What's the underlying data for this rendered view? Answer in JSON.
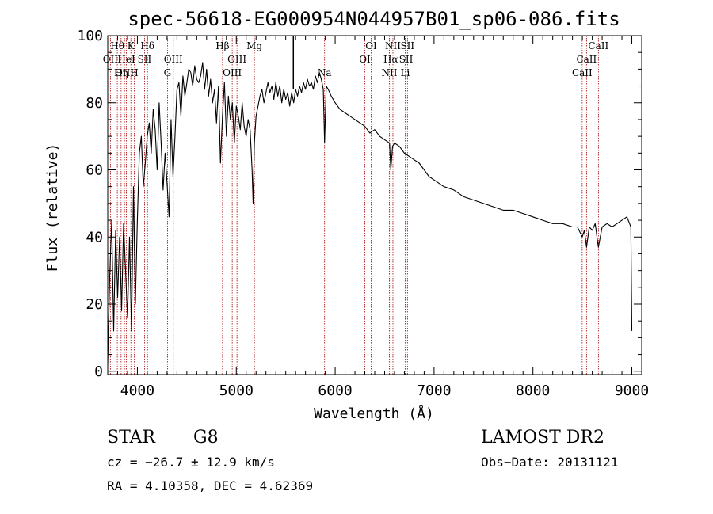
{
  "chart_data": {
    "type": "line",
    "title": "spec-56618-EG000954N044957B01_sp06-086.fits",
    "xlabel": "Wavelength (Å)",
    "ylabel": "Flux (relative)",
    "xlim": [
      3700,
      9100
    ],
    "ylim": [
      -1,
      100
    ],
    "x_ticks": [
      4000,
      5000,
      6000,
      7000,
      8000,
      9000
    ],
    "y_ticks": [
      0,
      20,
      40,
      60,
      80,
      100
    ],
    "grid": false,
    "series": [
      {
        "x": [
          3700,
          3720,
          3740,
          3760,
          3780,
          3800,
          3820,
          3840,
          3860,
          3880,
          3900,
          3920,
          3940,
          3960,
          3980,
          4000,
          4020,
          4040,
          4060,
          4080,
          4100,
          4120,
          4140,
          4160,
          4180,
          4200,
          4220,
          4240,
          4260,
          4280,
          4300,
          4320,
          4340,
          4360,
          4380,
          4400,
          4420,
          4440,
          4460,
          4480,
          4500,
          4520,
          4540,
          4560,
          4580,
          4600,
          4620,
          4640,
          4660,
          4680,
          4700,
          4720,
          4740,
          4760,
          4780,
          4800,
          4820,
          4840,
          4860,
          4880,
          4900,
          4920,
          4940,
          4960,
          4980,
          5000,
          5020,
          5040,
          5060,
          5080,
          5100,
          5120,
          5140,
          5160,
          5170,
          5183,
          5200,
          5220,
          5240,
          5260,
          5280,
          5300,
          5320,
          5340,
          5360,
          5380,
          5400,
          5420,
          5440,
          5460,
          5480,
          5500,
          5520,
          5540,
          5560,
          5580,
          5600,
          5620,
          5640,
          5660,
          5680,
          5700,
          5720,
          5740,
          5760,
          5780,
          5800,
          5820,
          5840,
          5860,
          5880,
          5893,
          5910,
          5930,
          5960,
          6000,
          6050,
          6100,
          6150,
          6200,
          6250,
          6300,
          6350,
          6400,
          6450,
          6500,
          6550,
          6563,
          6580,
          6600,
          6650,
          6700,
          6750,
          6800,
          6850,
          6900,
          6950,
          7000,
          7100,
          7200,
          7300,
          7400,
          7500,
          7600,
          7700,
          7800,
          7900,
          8000,
          8100,
          8200,
          8300,
          8400,
          8450,
          8498,
          8520,
          8542,
          8570,
          8600,
          8630,
          8662,
          8700,
          8750,
          8800,
          8850,
          8900,
          8950,
          8990,
          9000
        ],
        "values": [
          2,
          28,
          45,
          12,
          42,
          22,
          40,
          18,
          44,
          30,
          16,
          40,
          12,
          55,
          20,
          45,
          65,
          70,
          55,
          62,
          70,
          74,
          65,
          78,
          72,
          60,
          80,
          68,
          54,
          65,
          56,
          46,
          75,
          58,
          70,
          84,
          86,
          76,
          88,
          82,
          86,
          90,
          89,
          85,
          91,
          87,
          86,
          88,
          92,
          84,
          90,
          82,
          87,
          80,
          84,
          74,
          85,
          62,
          76,
          86,
          70,
          82,
          75,
          80,
          68,
          79,
          76,
          72,
          80,
          73,
          70,
          75,
          72,
          60,
          50,
          68,
          76,
          79,
          82,
          84,
          80,
          83,
          86,
          83,
          85,
          81,
          86,
          82,
          85,
          80,
          84,
          81,
          83,
          79,
          83,
          80,
          84,
          82,
          85,
          83,
          86,
          84,
          87,
          85,
          86,
          84,
          88,
          86,
          89,
          87,
          84,
          68,
          85,
          84,
          82,
          80,
          78,
          77,
          76,
          75,
          74,
          73,
          71,
          72,
          70,
          69,
          68,
          60,
          67,
          68,
          67,
          65,
          64,
          63,
          62,
          60,
          58,
          57,
          55,
          54,
          52,
          51,
          50,
          49,
          48,
          48,
          47,
          46,
          45,
          44,
          44,
          43,
          43,
          40,
          42,
          37,
          43,
          42,
          44,
          37,
          43,
          44,
          43,
          44,
          45,
          46,
          43,
          12
        ]
      }
    ],
    "annotations": [
      {
        "label": "Hθ",
        "x": 3797,
        "row": 0
      },
      {
        "label": "K",
        "x": 3934,
        "row": 0
      },
      {
        "label": "Hδ",
        "x": 4102,
        "row": 0
      },
      {
        "label": "Hβ",
        "x": 4861,
        "row": 0
      },
      {
        "label": "Mg",
        "x": 5183,
        "row": 0
      },
      {
        "label": "OI",
        "x": 6364,
        "row": 0
      },
      {
        "label": "NII",
        "x": 6584,
        "row": 0
      },
      {
        "label": "SII",
        "x": 6731,
        "row": 0
      },
      {
        "label": "CaII",
        "x": 8662,
        "row": 0
      },
      {
        "label": "OII",
        "x": 3727,
        "row": 1
      },
      {
        "label": "HeI",
        "x": 3889,
        "row": 1
      },
      {
        "label": "SII",
        "x": 4072,
        "row": 1
      },
      {
        "label": "OIII",
        "x": 4363,
        "row": 1
      },
      {
        "label": "OIII",
        "x": 5007,
        "row": 1
      },
      {
        "label": "OI",
        "x": 6300,
        "row": 1
      },
      {
        "label": "Hα",
        "x": 6563,
        "row": 1
      },
      {
        "label": "SII",
        "x": 6717,
        "row": 1
      },
      {
        "label": "CaII",
        "x": 8542,
        "row": 1
      },
      {
        "label": "OIII",
        "x": 3869,
        "row": 2
      },
      {
        "label": "Hη",
        "x": 3835,
        "row": 2
      },
      {
        "label": "H",
        "x": 3968,
        "row": 2
      },
      {
        "label": "G",
        "x": 4304,
        "row": 2
      },
      {
        "label": "OIII",
        "x": 4959,
        "row": 2
      },
      {
        "label": "Na",
        "x": 5893,
        "row": 2
      },
      {
        "label": "NII",
        "x": 6548,
        "row": 2
      },
      {
        "label": "Li",
        "x": 6708,
        "row": 2
      },
      {
        "label": "CaII",
        "x": 8498,
        "row": 2
      }
    ],
    "line_markers": [
      3727,
      3797,
      3835,
      3869,
      3889,
      3934,
      3968,
      4072,
      4102,
      4304,
      4363,
      4861,
      4959,
      5007,
      5183,
      5893,
      6300,
      6364,
      6548,
      6563,
      6584,
      6708,
      6717,
      6731,
      8498,
      8542,
      8662
    ],
    "marker_color": "#aa0000",
    "spike_x": 5577
  },
  "info": {
    "class_label": "STAR",
    "subclass": "G8",
    "survey": "LAMOST DR2",
    "cz": "cz = −26.7 ± 12.9 km/s",
    "obs_date": "Obs−Date: 20131121",
    "radec": "RA =   4.10358, DEC =   4.62369"
  }
}
